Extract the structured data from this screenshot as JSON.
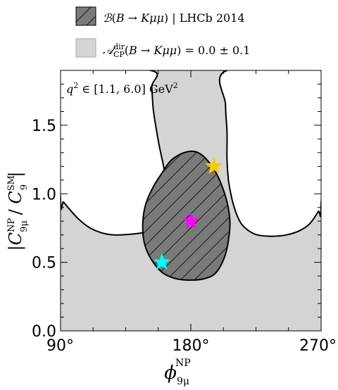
{
  "chart_data": {
    "type": "contour",
    "title": "",
    "xlabel": "φ_9μ^NP",
    "ylabel": "|C_9μ^NP / C_9^SM|",
    "xlim": [
      90,
      270
    ],
    "ylim": [
      0.0,
      1.9
    ],
    "xticks": [
      "90°",
      "180°",
      "270°"
    ],
    "yticks": [
      "0.0",
      "0.5",
      "1.0",
      "1.5"
    ],
    "ytick_values": [
      0.0,
      0.5,
      1.0,
      1.5
    ],
    "xtick_values": [
      90,
      180,
      270
    ],
    "annotation": "q² ∈ [1.1, 6.0] GeV²",
    "grid": false,
    "legend_position": "top",
    "legend": [
      {
        "label": "B(B → Kμμ) | LHCb 2014",
        "style": "hatched dark gray"
      },
      {
        "label": "A_CP^dir(B → Kμμ) = 0.0 ± 0.1",
        "style": "light gray"
      }
    ],
    "colors": {
      "acp_fill": "#d4d4d4",
      "br_fill": "#7a7a7a",
      "outline": "#000000",
      "star_magenta": "#ff00ff",
      "star_gold": "#ffcc00",
      "star_cyan": "#00ffff"
    },
    "regions": {
      "br_contour": [
        [
          180,
          1.31
        ],
        [
          185,
          1.3
        ],
        [
          190,
          1.26
        ],
        [
          196,
          1.18
        ],
        [
          201,
          1.07
        ],
        [
          205,
          0.94
        ],
        [
          207,
          0.8
        ],
        [
          206,
          0.66
        ],
        [
          203,
          0.53
        ],
        [
          197,
          0.42
        ],
        [
          189,
          0.38
        ],
        [
          180,
          0.37
        ],
        [
          170,
          0.38
        ],
        [
          161,
          0.42
        ],
        [
          154,
          0.5
        ],
        [
          149,
          0.6
        ],
        [
          147,
          0.7
        ],
        [
          147,
          0.82
        ],
        [
          149,
          0.93
        ],
        [
          154,
          1.05
        ],
        [
          160,
          1.15
        ],
        [
          166,
          1.24
        ],
        [
          173,
          1.29
        ]
      ],
      "acp_excluded_top": [
        [
          90,
          1.9
        ],
        [
          152,
          1.9
        ],
        [
          153,
          1.78
        ],
        [
          154,
          1.62
        ],
        [
          156,
          1.48
        ],
        [
          158,
          1.36
        ],
        [
          160,
          1.26
        ],
        [
          162,
          1.16
        ],
        [
          164,
          1.07
        ],
        [
          166,
          0.99
        ],
        [
          168,
          0.92
        ],
        [
          168,
          0.88
        ],
        [
          166,
          0.83
        ],
        [
          161,
          0.77
        ],
        [
          153,
          0.73
        ],
        [
          143,
          0.71
        ],
        [
          127,
          0.7
        ],
        [
          117,
          0.72
        ],
        [
          109,
          0.76
        ],
        [
          102,
          0.82
        ],
        [
          96,
          0.89
        ],
        [
          92,
          0.94
        ],
        [
          90,
          0.96
        ]
      ],
      "acp_excluded_right": [
        [
          205,
          1.9
        ],
        [
          270,
          1.9
        ],
        [
          270,
          0.92
        ],
        [
          268,
          0.87
        ],
        [
          262,
          0.78
        ],
        [
          255,
          0.73
        ],
        [
          246,
          0.7
        ],
        [
          236,
          0.69
        ],
        [
          226,
          0.7
        ],
        [
          220,
          0.73
        ],
        [
          215,
          0.78
        ],
        [
          212,
          0.84
        ],
        [
          210,
          0.9
        ],
        [
          208,
          0.98
        ],
        [
          206,
          1.1
        ],
        [
          205,
          1.25
        ],
        [
          205,
          1.45
        ],
        [
          204,
          1.65
        ]
      ]
    },
    "points": [
      {
        "x": 180,
        "y": 0.8,
        "marker": "star",
        "color": "#ff00ff"
      },
      {
        "x": 196,
        "y": 1.2,
        "marker": "star",
        "color": "#ffcc00"
      },
      {
        "x": 160,
        "y": 0.5,
        "marker": "star",
        "color": "#00ffff"
      }
    ]
  }
}
